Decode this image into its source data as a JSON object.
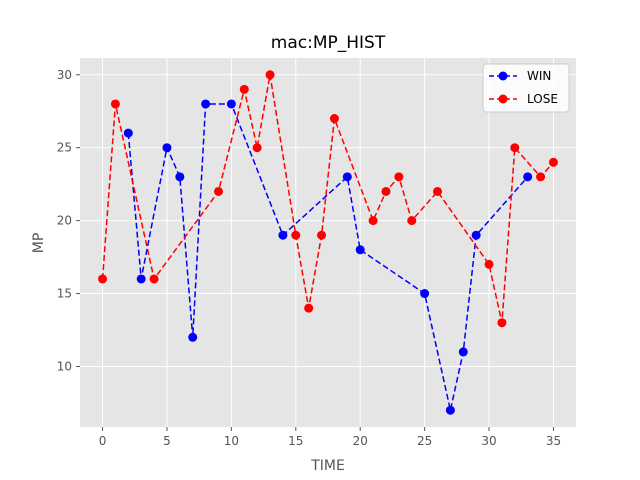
{
  "chart_data": {
    "type": "line",
    "title": "mac:MP_HIST",
    "xlabel": "TIME",
    "ylabel": "MP",
    "xlim": [
      -1.75,
      36.75
    ],
    "ylim": [
      5.85,
      31.15
    ],
    "xticks": [
      0,
      5,
      10,
      15,
      20,
      25,
      30,
      35
    ],
    "yticks": [
      10,
      15,
      20,
      25,
      30
    ],
    "grid": true,
    "legend_position": "top-right",
    "series": [
      {
        "name": "WIN",
        "color": "#0000ff",
        "line_style": "dashed",
        "marker": "circle",
        "points": [
          [
            2,
            26
          ],
          [
            3,
            16
          ],
          [
            5,
            25
          ],
          [
            6,
            23
          ],
          [
            7,
            12
          ],
          [
            8,
            28
          ],
          [
            10,
            28
          ],
          [
            14,
            19
          ],
          [
            19,
            23
          ],
          [
            20,
            18
          ],
          [
            25,
            15
          ],
          [
            27,
            7
          ],
          [
            28,
            11
          ],
          [
            29,
            19
          ],
          [
            33,
            23
          ]
        ]
      },
      {
        "name": "LOSE",
        "color": "#ff0000",
        "line_style": "dashed",
        "marker": "circle",
        "points": [
          [
            0,
            16
          ],
          [
            1,
            28
          ],
          [
            4,
            16
          ],
          [
            9,
            22
          ],
          [
            11,
            29
          ],
          [
            12,
            25
          ],
          [
            13,
            30
          ],
          [
            15,
            19
          ],
          [
            16,
            14
          ],
          [
            17,
            19
          ],
          [
            18,
            27
          ],
          [
            21,
            20
          ],
          [
            22,
            22
          ],
          [
            23,
            23
          ],
          [
            24,
            20
          ],
          [
            26,
            22
          ],
          [
            30,
            17
          ],
          [
            31,
            13
          ],
          [
            32,
            25
          ],
          [
            34,
            23
          ],
          [
            35,
            24
          ]
        ]
      }
    ]
  },
  "colors": {
    "plot_background": "#e5e5e5",
    "grid": "#ffffff",
    "axis_text": "#555555"
  }
}
